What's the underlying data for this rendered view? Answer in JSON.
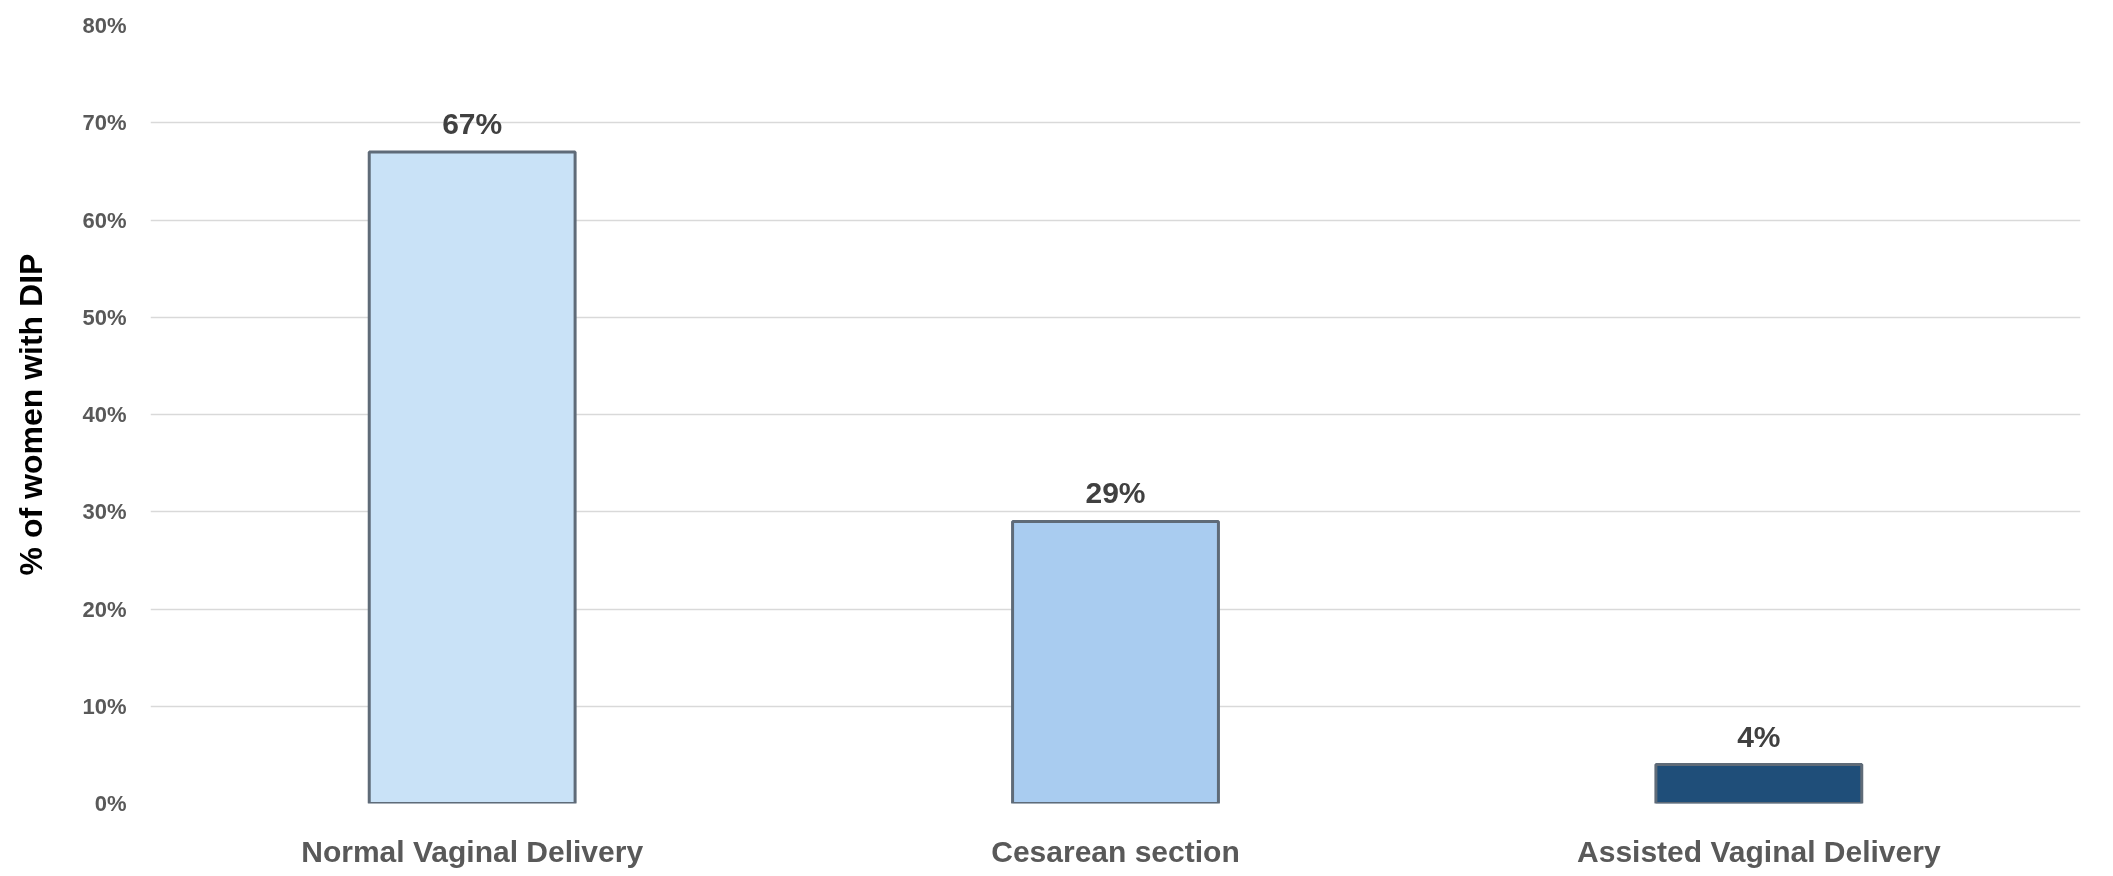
{
  "chart_data": {
    "type": "bar",
    "ylabel": "% of women with DIP",
    "categories": [
      "Normal Vaginal Delivery",
      "Cesarean section",
      "Assisted Vaginal Delivery"
    ],
    "values": [
      67,
      29,
      4
    ],
    "colors": [
      "#c9e2f7",
      "#a9ccf0",
      "#1f4e79"
    ],
    "value_labels": [
      "67%",
      "29%",
      "4%"
    ],
    "ylim": [
      0,
      80
    ],
    "yticks": [
      {
        "value": 0,
        "label": "0%"
      },
      {
        "value": 10,
        "label": "10%"
      },
      {
        "value": 20,
        "label": "20%"
      },
      {
        "value": 30,
        "label": "30%"
      },
      {
        "value": 40,
        "label": "40%"
      },
      {
        "value": 50,
        "label": "50%"
      },
      {
        "value": 60,
        "label": "60%"
      },
      {
        "value": 70,
        "label": "70%"
      },
      {
        "value": 80,
        "label": "80%"
      }
    ],
    "grid": "y"
  }
}
